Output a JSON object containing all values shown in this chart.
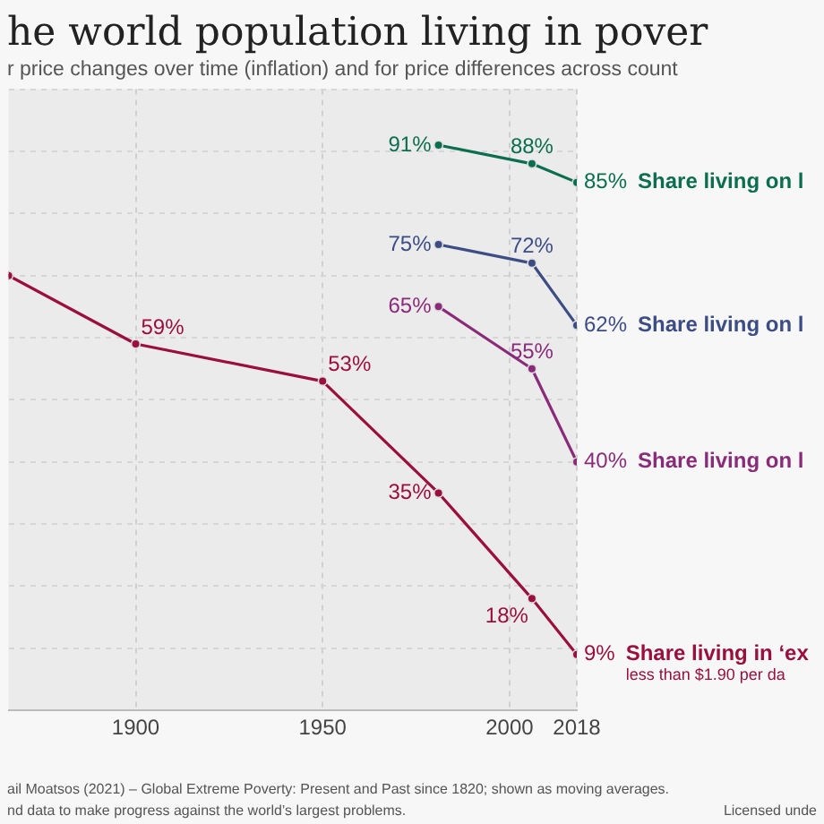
{
  "chart_data": {
    "type": "line",
    "title": "he world population living in pover",
    "subtitle": "r price changes over time (inflation) and for price differences across count",
    "xlim": [
      1866,
      2018
    ],
    "xticks": [
      1900,
      1950,
      2000,
      2018
    ],
    "ylim": [
      0,
      100
    ],
    "yticks": [
      {
        "value": 0,
        "label": null
      },
      {
        "value": 10,
        "label": null
      },
      {
        "value": 20,
        "label": null
      },
      {
        "value": 30,
        "label": null
      },
      {
        "value": 40,
        "label": null
      },
      {
        "value": 50,
        "label": null
      },
      {
        "value": 60,
        "label": null
      },
      {
        "value": 70,
        "label": null
      },
      {
        "value": 80,
        "label": null
      },
      {
        "value": 90,
        "label": null
      },
      {
        "value": 100,
        "label": null
      }
    ],
    "tick_labels": "x",
    "grid": true,
    "legend": false,
    "marker": "circle",
    "line_style": "solid",
    "series": [
      {
        "name": "Share living on l",
        "color": "#0b6e4f",
        "x": [
          1981,
          2006,
          2018
        ],
        "values": [
          91,
          88,
          85
        ],
        "value_labels": [
          "91%",
          "88%",
          "85%"
        ]
      },
      {
        "name": "Share living on l",
        "color": "#3c4d86",
        "x": [
          1981,
          2006,
          2018
        ],
        "values": [
          75,
          72,
          62
        ],
        "value_labels": [
          "75%",
          "72%",
          "62%"
        ]
      },
      {
        "name": "Share living on l",
        "color": "#8a2b7a",
        "x": [
          1981,
          2006,
          2018
        ],
        "values": [
          65,
          55,
          40
        ],
        "value_labels": [
          "65%",
          "55%",
          "40%"
        ]
      },
      {
        "name": "Share living in ‘ex",
        "color": "#9a0f3c",
        "x": [
          1866,
          1900,
          1950,
          1981,
          2006,
          2018
        ],
        "values": [
          70,
          59,
          53,
          35,
          18,
          9
        ],
        "value_labels": [
          null,
          "59%",
          "53%",
          "35%",
          "18%",
          "9%"
        ]
      }
    ],
    "annotations": [
      "less than $1.90 per da",
      "ail Moatsos (2021) – Global Extreme Poverty: Present and Past since 1820; shown as moving averages.",
      "nd data to make progress against the world’s largest problems.",
      "Licensed unde"
    ]
  }
}
